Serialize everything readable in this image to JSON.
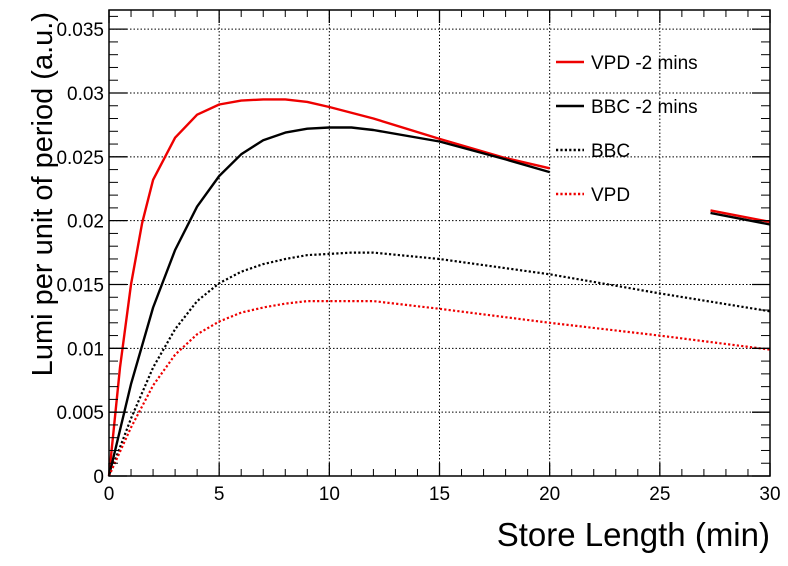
{
  "chart_data": {
    "type": "line",
    "xlabel": "Store Length (min)",
    "ylabel": "Lumi per unit of period (a.u.)",
    "xlim": [
      0,
      30
    ],
    "ylim": [
      0,
      0.0365
    ],
    "x_ticks": [
      "0",
      "5",
      "10",
      "15",
      "20",
      "25",
      "30"
    ],
    "y_ticks": [
      "0",
      "0.005",
      "0.01",
      "0.015",
      "0.02",
      "0.025",
      "0.03",
      "0.035"
    ],
    "grid": true,
    "legend_position": "top-right",
    "series": [
      {
        "name": "VPD -2 mins",
        "color": "#ee0000",
        "style": "solid",
        "points": [
          [
            0,
            0
          ],
          [
            0.5,
            0.0085
          ],
          [
            1,
            0.015
          ],
          [
            1.5,
            0.0198
          ],
          [
            2,
            0.0232
          ],
          [
            3,
            0.0265
          ],
          [
            4,
            0.0283
          ],
          [
            5,
            0.0291
          ],
          [
            6,
            0.0294
          ],
          [
            7,
            0.0295
          ],
          [
            8,
            0.0295
          ],
          [
            9,
            0.0293
          ],
          [
            10,
            0.0289
          ],
          [
            12,
            0.028
          ],
          [
            15,
            0.0264
          ],
          [
            18,
            0.0249
          ],
          [
            20,
            0.0241
          ],
          [
            null,
            null
          ],
          [
            27.3,
            0.0208
          ],
          [
            30,
            0.0199
          ]
        ]
      },
      {
        "name": "BBC -2 mins",
        "color": "#000000",
        "style": "solid",
        "points": [
          [
            0,
            0
          ],
          [
            1,
            0.0072
          ],
          [
            2,
            0.0132
          ],
          [
            3,
            0.0177
          ],
          [
            4,
            0.0211
          ],
          [
            5,
            0.0235
          ],
          [
            6,
            0.0252
          ],
          [
            7,
            0.0263
          ],
          [
            8,
            0.0269
          ],
          [
            9,
            0.0272
          ],
          [
            10,
            0.0273
          ],
          [
            11,
            0.0273
          ],
          [
            12,
            0.0271
          ],
          [
            15,
            0.0262
          ],
          [
            18,
            0.0248
          ],
          [
            20,
            0.0238
          ],
          [
            null,
            null
          ],
          [
            27.3,
            0.0206
          ],
          [
            30,
            0.0197
          ]
        ]
      },
      {
        "name": "BBC",
        "color": "#000000",
        "style": "dotted",
        "points": [
          [
            0,
            0
          ],
          [
            1,
            0.0045
          ],
          [
            2,
            0.0085
          ],
          [
            3,
            0.0115
          ],
          [
            4,
            0.0137
          ],
          [
            5,
            0.0151
          ],
          [
            6,
            0.016
          ],
          [
            7,
            0.0166
          ],
          [
            8,
            0.017
          ],
          [
            9,
            0.0173
          ],
          [
            10,
            0.0174
          ],
          [
            11,
            0.0175
          ],
          [
            12,
            0.0175
          ],
          [
            15,
            0.017
          ],
          [
            20,
            0.0158
          ],
          [
            25,
            0.0143
          ],
          [
            30,
            0.0129
          ]
        ]
      },
      {
        "name": "VPD",
        "color": "#ee0000",
        "style": "dotted",
        "points": [
          [
            0,
            0
          ],
          [
            1,
            0.0038
          ],
          [
            2,
            0.0071
          ],
          [
            3,
            0.0095
          ],
          [
            4,
            0.0111
          ],
          [
            5,
            0.0121
          ],
          [
            6,
            0.0128
          ],
          [
            7,
            0.0132
          ],
          [
            8,
            0.0135
          ],
          [
            9,
            0.0137
          ],
          [
            10,
            0.0137
          ],
          [
            11,
            0.0137
          ],
          [
            12,
            0.0137
          ],
          [
            15,
            0.0131
          ],
          [
            20,
            0.012
          ],
          [
            25,
            0.011
          ],
          [
            30,
            0.0099
          ]
        ]
      }
    ]
  }
}
